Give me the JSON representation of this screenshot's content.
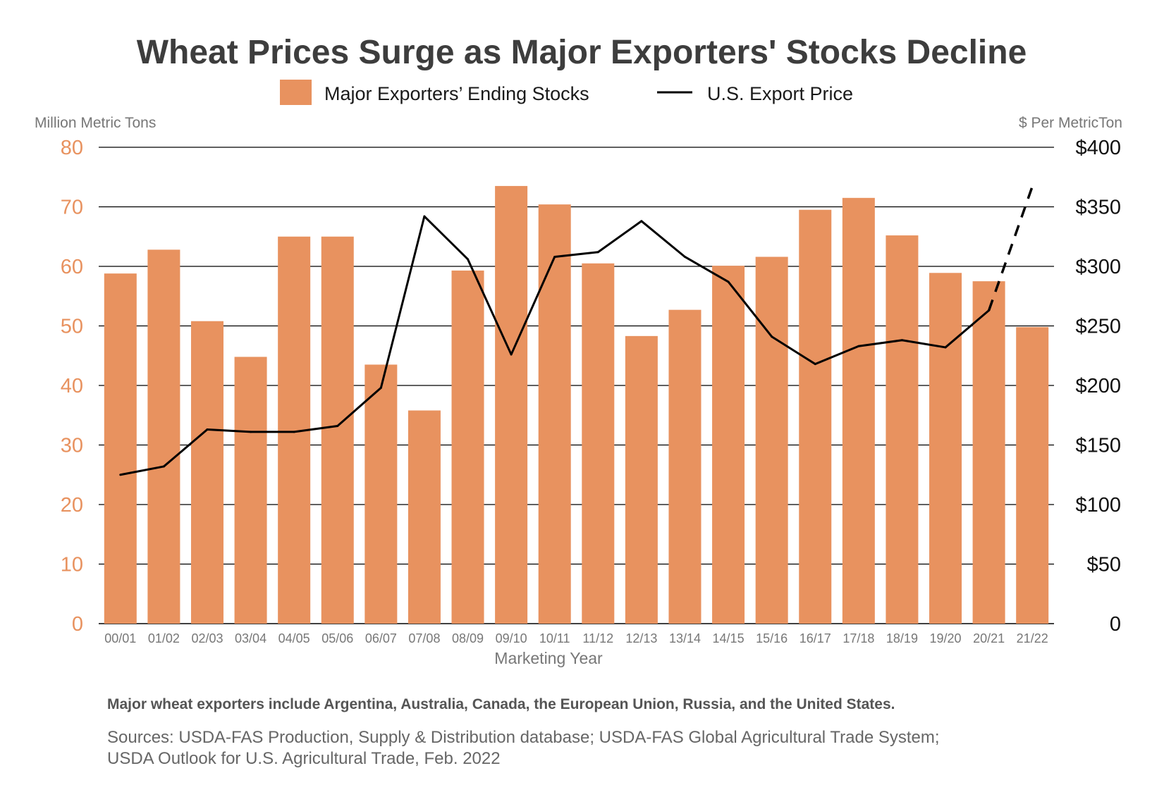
{
  "colors": {
    "bar": "#e8925f",
    "line": "#000000",
    "left_axis": "#e8925f",
    "grid": "#000000"
  },
  "legend": {
    "bar_label": "Major Exporters’ Ending Stocks",
    "line_label": "U.S. Export Price"
  },
  "footnote": "Major wheat exporters include Argentina, Australia, Canada, the European Union, Russia, and the United States.",
  "sources": {
    "line1": "Sources: USDA-FAS Production, Supply & Distribution database; USDA-FAS Global Agricultural Trade System;",
    "line2": "USDA Outlook for U.S. Agricultural Trade, Feb. 2022"
  },
  "chart_data": {
    "type": "bar",
    "title": "Wheat Prices Surge as Major Exporters' Stocks Decline",
    "xlabel": "Marketing Year",
    "ylabel": "Million Metric Tons",
    "y2label": "$ Per MetricTon",
    "ylim": [
      0,
      80
    ],
    "y2lim": [
      0,
      400
    ],
    "yticks": [
      0,
      10,
      20,
      30,
      40,
      50,
      60,
      70,
      80
    ],
    "y2ticks": [
      "0",
      "$50",
      "$100",
      "$150",
      "$200",
      "$250",
      "$300",
      "$350",
      "$400"
    ],
    "categories": [
      "00/01",
      "01/02",
      "02/03",
      "03/04",
      "04/05",
      "05/06",
      "06/07",
      "07/08",
      "08/09",
      "09/10",
      "10/11",
      "11/12",
      "12/13",
      "13/14",
      "14/15",
      "15/16",
      "16/17",
      "17/18",
      "18/19",
      "19/20",
      "20/21",
      "21/22"
    ],
    "series": [
      {
        "name": "Major Exporters’ Ending Stocks",
        "type": "bar",
        "axis": "left",
        "values": [
          58.8,
          62.8,
          50.8,
          44.8,
          65.0,
          65.0,
          43.5,
          35.8,
          59.3,
          73.5,
          70.4,
          60.5,
          48.3,
          52.7,
          60.1,
          61.6,
          69.5,
          71.5,
          65.2,
          58.9,
          57.5,
          49.8
        ]
      },
      {
        "name": "U.S. Export Price",
        "type": "line",
        "axis": "right",
        "values": [
          125,
          132,
          163,
          161,
          161,
          166,
          198,
          342,
          306,
          226,
          308,
          312,
          338,
          308,
          287,
          241,
          218,
          233,
          238,
          232,
          263,
          null
        ],
        "projection": {
          "from_category": "20/21",
          "from_value": 263,
          "to_category": "21/22",
          "to_value": 367
        }
      }
    ],
    "legend_position": "top-center",
    "grid": true
  }
}
